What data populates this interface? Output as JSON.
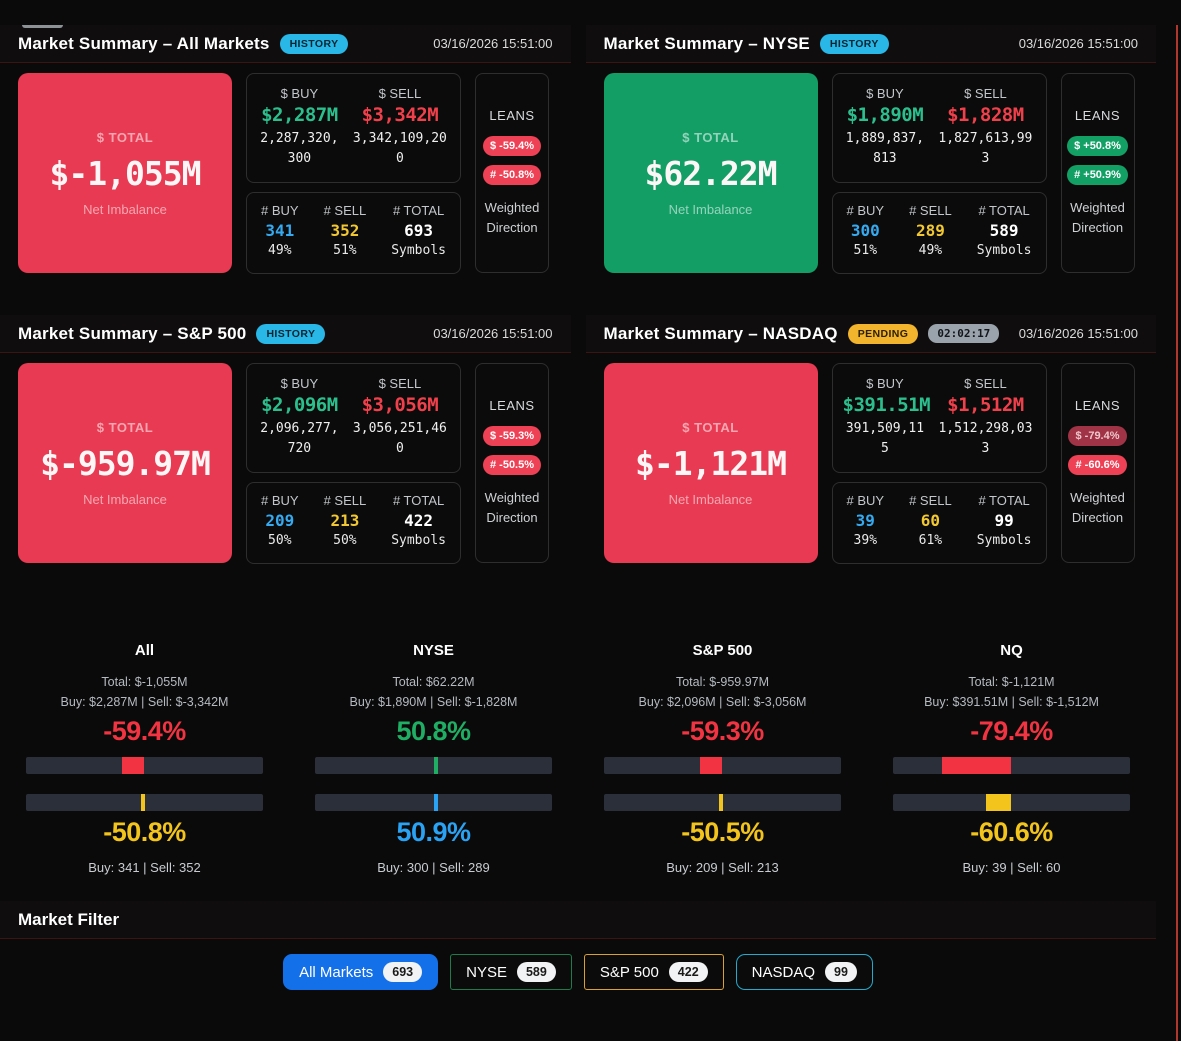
{
  "markets": [
    {
      "title": "Market Summary – All Markets",
      "status_badge": {
        "label": "HISTORY",
        "style": "history"
      },
      "timestamp": "03/16/2026 15:51:00",
      "total": {
        "label": "$ TOTAL",
        "value": "$-1,055M",
        "sub": "Net Imbalance",
        "direction": "negative"
      },
      "dollars": {
        "buy_label": "$ BUY",
        "buy": "$2,287M",
        "buy_raw": "2,287,320,300",
        "sell_label": "$ SELL",
        "sell": "$3,342M",
        "sell_raw": "3,342,109,200"
      },
      "counts": {
        "buy_label": "# BUY",
        "buy": "341",
        "buy_pct": "49%",
        "sell_label": "# SELL",
        "sell": "352",
        "sell_pct": "51%",
        "total_label": "# TOTAL",
        "total": "693",
        "total_sub": "Symbols"
      },
      "leans": {
        "label": "LEANS",
        "dollar": {
          "text": "$ -59.4%",
          "tone": "red"
        },
        "count": {
          "text": "# -50.8%",
          "tone": "red"
        },
        "caption": "Weighted Direction"
      }
    },
    {
      "title": "Market Summary – NYSE",
      "status_badge": {
        "label": "HISTORY",
        "style": "history"
      },
      "timestamp": "03/16/2026 15:51:00",
      "total": {
        "label": "$ TOTAL",
        "value": "$62.22M",
        "sub": "Net Imbalance",
        "direction": "positive"
      },
      "dollars": {
        "buy_label": "$ BUY",
        "buy": "$1,890M",
        "buy_raw": "1,889,837,813",
        "sell_label": "$ SELL",
        "sell": "$1,828M",
        "sell_raw": "1,827,613,993"
      },
      "counts": {
        "buy_label": "# BUY",
        "buy": "300",
        "buy_pct": "51%",
        "sell_label": "# SELL",
        "sell": "289",
        "sell_pct": "49%",
        "total_label": "# TOTAL",
        "total": "589",
        "total_sub": "Symbols"
      },
      "leans": {
        "label": "LEANS",
        "dollar": {
          "text": "$ +50.8%",
          "tone": "green"
        },
        "count": {
          "text": "# +50.9%",
          "tone": "green"
        },
        "caption": "Weighted Direction"
      }
    },
    {
      "title": "Market Summary – S&P 500",
      "status_badge": {
        "label": "HISTORY",
        "style": "history"
      },
      "timestamp": "03/16/2026 15:51:00",
      "total": {
        "label": "$ TOTAL",
        "value": "$-959.97M",
        "sub": "Net Imbalance",
        "direction": "negative"
      },
      "dollars": {
        "buy_label": "$ BUY",
        "buy": "$2,096M",
        "buy_raw": "2,096,277,720",
        "sell_label": "$ SELL",
        "sell": "$3,056M",
        "sell_raw": "3,056,251,460"
      },
      "counts": {
        "buy_label": "# BUY",
        "buy": "209",
        "buy_pct": "50%",
        "sell_label": "# SELL",
        "sell": "213",
        "sell_pct": "50%",
        "total_label": "# TOTAL",
        "total": "422",
        "total_sub": "Symbols"
      },
      "leans": {
        "label": "LEANS",
        "dollar": {
          "text": "$ -59.3%",
          "tone": "red"
        },
        "count": {
          "text": "# -50.5%",
          "tone": "red"
        },
        "caption": "Weighted Direction"
      }
    },
    {
      "title": "Market Summary – NASDAQ",
      "status_badge": {
        "label": "PENDING",
        "style": "pending"
      },
      "timer": "02:02:17",
      "timestamp": "03/16/2026 15:51:00",
      "total": {
        "label": "$ TOTAL",
        "value": "$-1,121M",
        "sub": "Net Imbalance",
        "direction": "negative"
      },
      "dollars": {
        "buy_label": "$ BUY",
        "buy": "$391.51M",
        "buy_raw": "391,509,115",
        "sell_label": "$ SELL",
        "sell": "$1,512M",
        "sell_raw": "1,512,298,033"
      },
      "counts": {
        "buy_label": "# BUY",
        "buy": "39",
        "buy_pct": "39%",
        "sell_label": "# SELL",
        "sell": "60",
        "sell_pct": "61%",
        "total_label": "# TOTAL",
        "total": "99",
        "total_sub": "Symbols"
      },
      "leans": {
        "label": "LEANS",
        "dollar": {
          "text": "$ -79.4%",
          "tone": "red-muted"
        },
        "count": {
          "text": "# -60.6%",
          "tone": "red"
        },
        "caption": "Weighted Direction"
      }
    }
  ],
  "gauges": [
    {
      "name": "All",
      "total": "Total: $-1,055M",
      "buy_sell": "Buy: $2,287M | Sell: $-3,342M",
      "dollar_lean": {
        "text": "-59.4%",
        "value": -59.4,
        "color": "red"
      },
      "count_lean": {
        "text": "-50.8%",
        "value": -50.8,
        "color": "yellow"
      },
      "counts": "Buy: 341 | Sell: 352"
    },
    {
      "name": "NYSE",
      "total": "Total: $62.22M",
      "buy_sell": "Buy: $1,890M | Sell: $-1,828M",
      "dollar_lean": {
        "text": "50.8%",
        "value": 50.8,
        "color": "green"
      },
      "count_lean": {
        "text": "50.9%",
        "value": 50.9,
        "color": "blue"
      },
      "counts": "Buy: 300 | Sell: 289"
    },
    {
      "name": "S&P 500",
      "total": "Total: $-959.97M",
      "buy_sell": "Buy: $2,096M | Sell: $-3,056M",
      "dollar_lean": {
        "text": "-59.3%",
        "value": -59.3,
        "color": "red"
      },
      "count_lean": {
        "text": "-50.5%",
        "value": -50.5,
        "color": "yellow"
      },
      "counts": "Buy: 209 | Sell: 213"
    },
    {
      "name": "NQ",
      "total": "Total: $-1,121M",
      "buy_sell": "Buy: $391.51M | Sell: $-1,512M",
      "dollar_lean": {
        "text": "-79.4%",
        "value": -79.4,
        "color": "red"
      },
      "count_lean": {
        "text": "-60.6%",
        "value": -60.6,
        "color": "yellow"
      },
      "counts": "Buy: 39 | Sell: 60"
    }
  ],
  "filter": {
    "title": "Market Filter",
    "buttons": [
      {
        "label": "All Markets",
        "count": "693",
        "style": "active-blue"
      },
      {
        "label": "NYSE",
        "count": "589",
        "style": "green-border"
      },
      {
        "label": "S&P 500",
        "count": "422",
        "style": "amber-border"
      },
      {
        "label": "NASDAQ",
        "count": "99",
        "style": "cyan-border"
      }
    ]
  },
  "colors": {
    "negative_card": "#e83a52",
    "positive_card": "#139e66",
    "lean_red": "#f23341",
    "lean_yellow": "#f3c41b",
    "lean_green": "#1fae63",
    "lean_blue": "#2aa3f4",
    "accent_blue": "#1470e8",
    "badge_cyan": "#29b7e8",
    "badge_amber": "#f2b42d"
  }
}
